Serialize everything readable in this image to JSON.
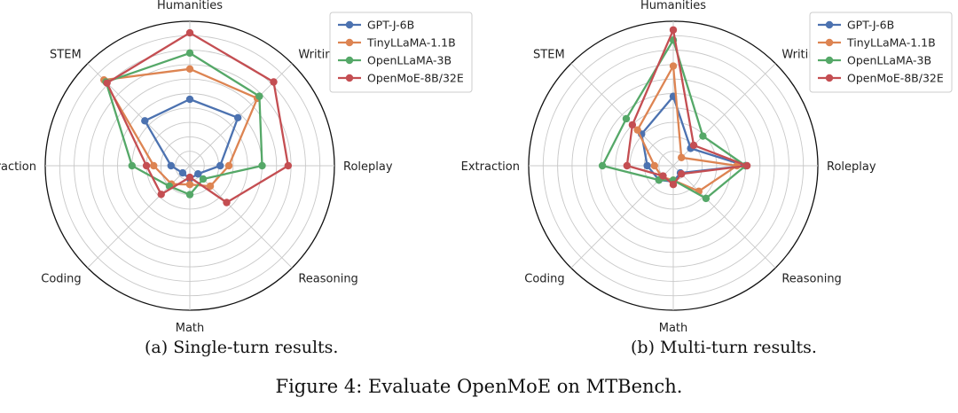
{
  "colors": {
    "GPT-J-6B": "#4c72b0",
    "TinyLLaMA-1.1B": "#dd8452",
    "OpenLLaMA-3B": "#55a868",
    "OpenMoE-8B/32E": "#c44e52"
  },
  "chart_data": [
    {
      "type": "radar",
      "subtitle": "(a) Single-turn results.",
      "categories": [
        "Humanities",
        "Writing",
        "Roleplay",
        "Reasoning",
        "Math",
        "Coding",
        "Extraction",
        "STEM"
      ],
      "rlim": [
        0,
        10
      ],
      "grid": true,
      "legend_position": "top-right",
      "series": [
        {
          "name": "GPT-J-6B",
          "values": [
            4.6,
            4.7,
            2.1,
            0.8,
            0.9,
            0.7,
            1.3,
            4.4
          ]
        },
        {
          "name": "TinyLLaMA-1.1B",
          "values": [
            6.7,
            6.6,
            2.7,
            2.0,
            1.3,
            1.8,
            2.5,
            8.4
          ]
        },
        {
          "name": "OpenLLaMA-3B",
          "values": [
            7.8,
            6.8,
            5.0,
            1.3,
            2.0,
            2.0,
            4.0,
            8.2
          ]
        },
        {
          "name": "OpenMoE-8B/32E",
          "values": [
            9.2,
            8.2,
            6.8,
            3.6,
            0.8,
            2.8,
            3.0,
            8.1
          ]
        }
      ]
    },
    {
      "type": "radar",
      "subtitle": "(b) Multi-turn results.",
      "categories": [
        "Humanities",
        "Writing",
        "Roleplay",
        "Reasoning",
        "Math",
        "Coding",
        "Extraction",
        "STEM"
      ],
      "rlim": [
        0,
        10
      ],
      "grid": true,
      "legend_position": "top-right",
      "series": [
        {
          "name": "GPT-J-6B",
          "values": [
            4.8,
            1.7,
            5.0,
            0.7,
            1.1,
            1.4,
            1.8,
            3.1
          ]
        },
        {
          "name": "TinyLLaMA-1.1B",
          "values": [
            6.9,
            0.8,
            4.4,
            2.5,
            1.0,
            1.1,
            1.3,
            3.5
          ]
        },
        {
          "name": "OpenLLaMA-3B",
          "values": [
            8.7,
            2.9,
            5.0,
            3.2,
            1.0,
            1.4,
            4.9,
            4.6
          ]
        },
        {
          "name": "OpenMoE-8B/32E",
          "values": [
            9.4,
            2.0,
            5.1,
            0.8,
            1.3,
            1.0,
            3.2,
            4.0
          ]
        }
      ]
    }
  ],
  "figure_caption": "Figure 4: Evaluate OpenMoE on MTBench."
}
